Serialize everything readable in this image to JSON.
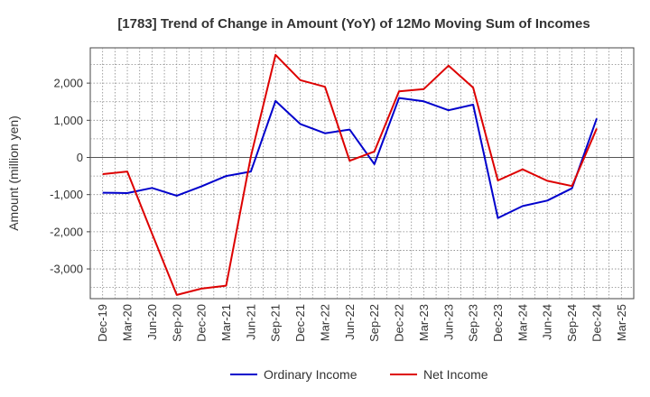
{
  "chart_data": {
    "type": "line",
    "title": "[1783]  Trend of Change in Amount (YoY) of 12Mo Moving Sum of Incomes",
    "ylabel": "Amount (million yen)",
    "xlabel": "",
    "x": [
      "Dec-19",
      "Mar-20",
      "Jun-20",
      "Sep-20",
      "Dec-20",
      "Mar-21",
      "Jun-21",
      "Sep-21",
      "Dec-21",
      "Mar-22",
      "Jun-22",
      "Sep-22",
      "Dec-22",
      "Mar-23",
      "Jun-23",
      "Sep-23",
      "Dec-23",
      "Mar-24",
      "Jun-24",
      "Sep-24",
      "Dec-24",
      "Mar-25"
    ],
    "ylim": [
      -3800,
      2950
    ],
    "yticks": [
      -3000,
      -2000,
      -1000,
      0,
      1000,
      2000
    ],
    "ytick_labels": [
      "-3,000",
      "-2,000",
      "-1,000",
      "0",
      "1,000",
      "2,000"
    ],
    "grid": true,
    "legend_position": "bottom",
    "series": [
      {
        "name": "Ordinary Income",
        "color": "#0000cc",
        "values": [
          -950,
          -960,
          -820,
          -1030,
          -780,
          -500,
          -380,
          1520,
          900,
          650,
          750,
          -180,
          1600,
          1510,
          1270,
          1420,
          -1630,
          -1310,
          -1160,
          -830,
          1050,
          null
        ]
      },
      {
        "name": "Net Income",
        "color": "#dd0000",
        "values": [
          -450,
          -380,
          -2050,
          -3700,
          -3530,
          -3450,
          30,
          2760,
          2080,
          1900,
          -90,
          160,
          1780,
          1840,
          2470,
          1880,
          -620,
          -320,
          -630,
          -770,
          780,
          null
        ]
      }
    ]
  }
}
